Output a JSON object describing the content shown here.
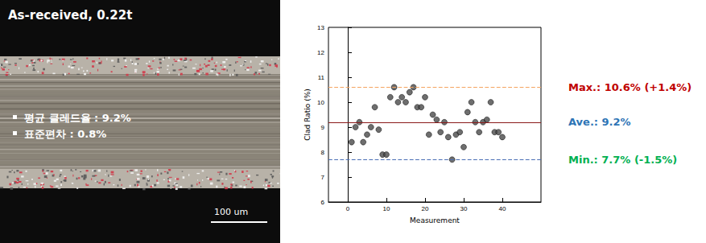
{
  "chart_data": {
    "type": "scatter",
    "x_label": "Measurement",
    "y_label": "Clad Ratio (%)",
    "x": [
      1,
      2,
      3,
      4,
      5,
      6,
      7,
      8,
      9,
      10,
      11,
      12,
      13,
      14,
      15,
      16,
      17,
      18,
      19,
      20,
      21,
      22,
      23,
      24,
      25,
      26,
      27,
      28,
      29,
      30,
      31,
      32,
      33,
      34,
      35,
      36,
      37,
      38,
      39,
      40
    ],
    "values": [
      8.4,
      9.0,
      9.2,
      8.4,
      8.7,
      9.0,
      9.8,
      8.9,
      7.9,
      7.9,
      10.2,
      10.6,
      10.0,
      10.2,
      10.0,
      10.4,
      10.6,
      9.8,
      9.8,
      10.2,
      8.7,
      9.5,
      9.3,
      8.8,
      9.2,
      8.6,
      7.7,
      8.7,
      8.8,
      8.2,
      9.6,
      10.0,
      9.2,
      8.8,
      9.2,
      9.3,
      10.0,
      8.8,
      8.8,
      8.6
    ],
    "color": "#4a4a4a",
    "marker": "circle",
    "xlim": [
      -5,
      50
    ],
    "xticks": [
      0,
      10,
      20,
      30,
      40
    ],
    "ylim": [
      6,
      13
    ],
    "yticks": [
      6,
      7,
      8,
      9,
      10,
      11,
      12,
      13
    ],
    "grid": false,
    "reference_lines": [
      {
        "value": 10.6,
        "label": "Max.: 10.6% (+1.4%)",
        "color": "#f4a460",
        "line_style": "dashed"
      },
      {
        "value": 9.2,
        "label": "Ave.: 9.2%",
        "color": "#8b1a1a",
        "line_style": "solid"
      },
      {
        "value": 7.7,
        "label": "Min.: 7.7% (-1.5%)",
        "color": "#4a6fb5",
        "line_style": "dashed"
      }
    ]
  },
  "micrograph": {
    "title": "As-received, 0.22t",
    "bullets": [
      "평균 클레드율 : 9.2%",
      "표준편차 : 0.8%"
    ],
    "scale_bar": "100 um"
  }
}
